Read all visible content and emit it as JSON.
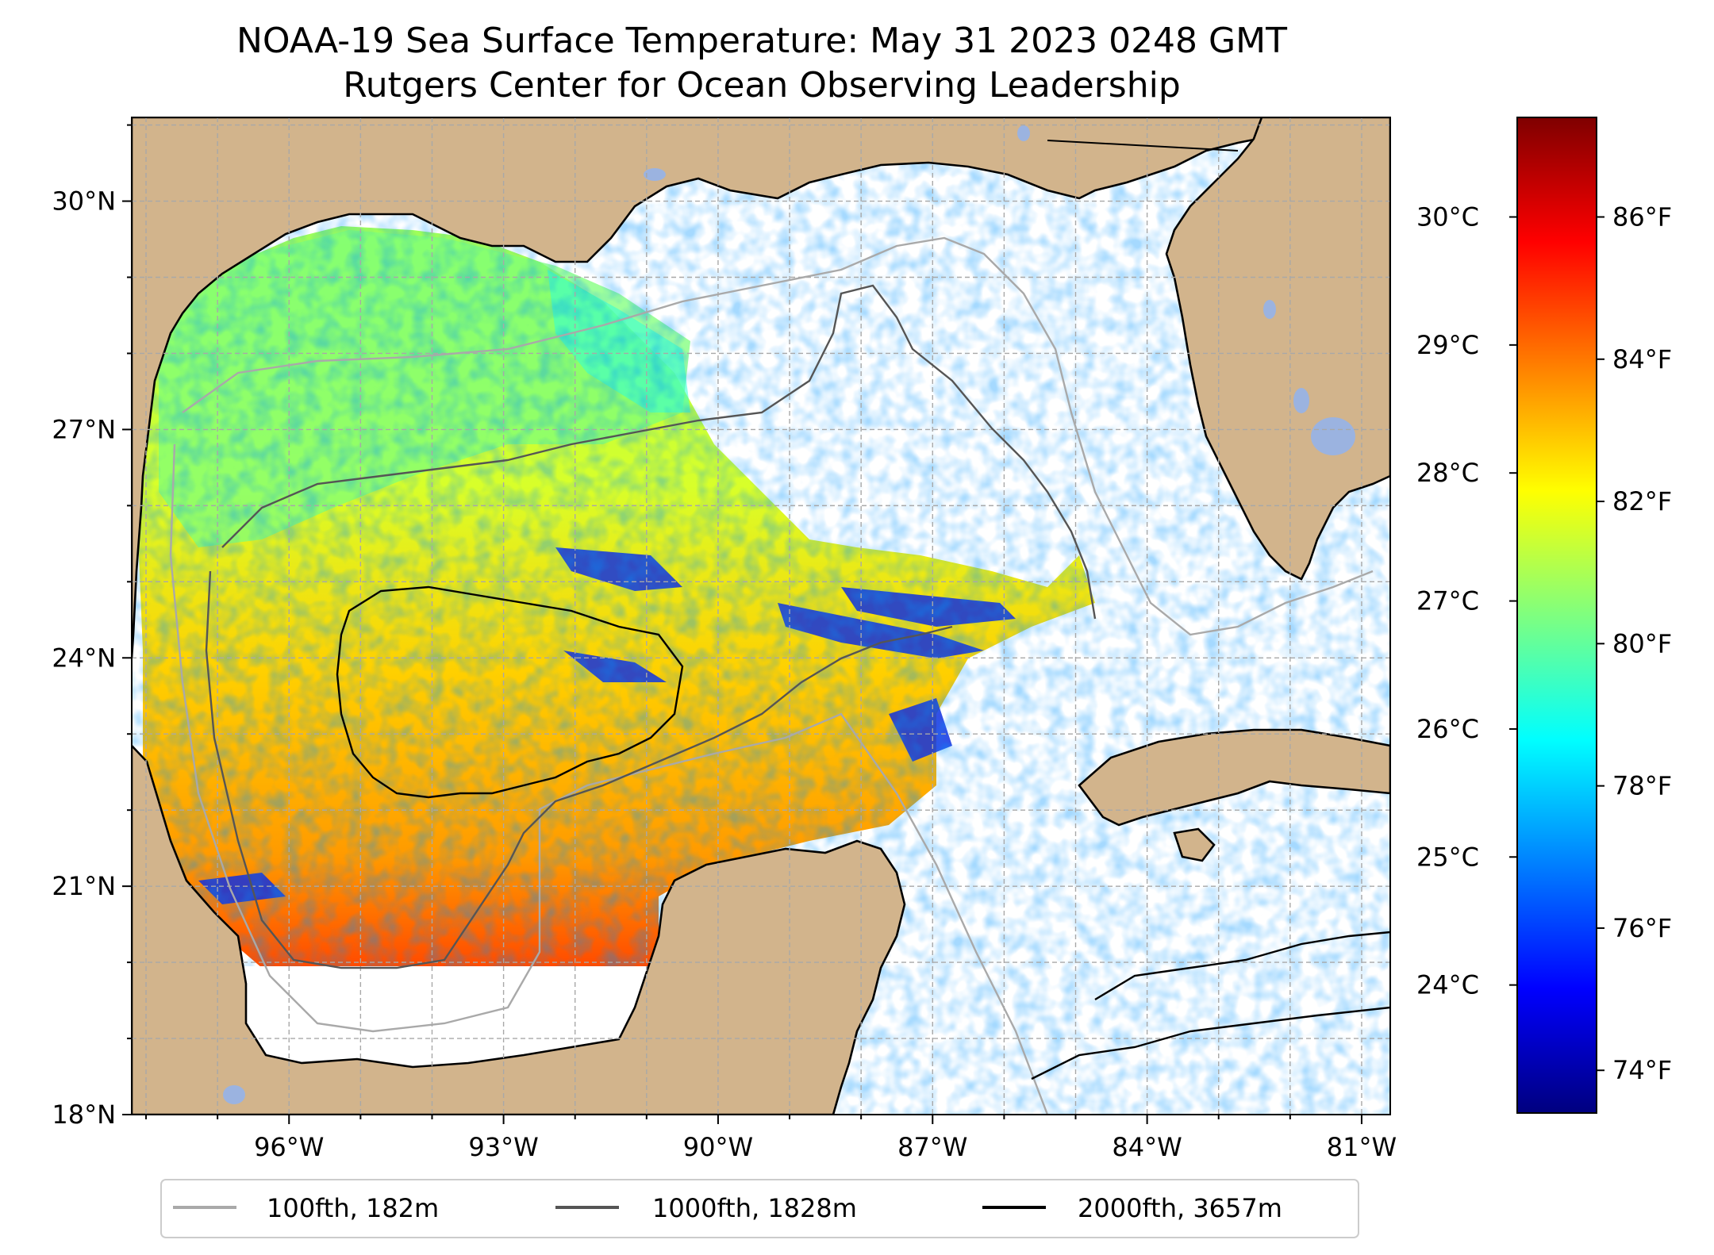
{
  "title": {
    "line1": "NOAA-19 Sea Surface Temperature: May 31 2023 0248 GMT",
    "line2": "Rutgers Center for Ocean Observing Leadership"
  },
  "map": {
    "lat_range": [
      18,
      31.1
    ],
    "lon_range": [
      -98.2,
      -80.6
    ],
    "lat_ticks": [
      {
        "value": 30,
        "label": "30°N"
      },
      {
        "value": 27,
        "label": "27°N"
      },
      {
        "value": 24,
        "label": "24°N"
      },
      {
        "value": 21,
        "label": "21°N"
      },
      {
        "value": 18,
        "label": "18°N"
      }
    ],
    "lon_ticks": [
      {
        "value": -96,
        "label": "96°W"
      },
      {
        "value": -93,
        "label": "93°W"
      },
      {
        "value": -90,
        "label": "90°W"
      },
      {
        "value": -87,
        "label": "87°W"
      },
      {
        "value": -84,
        "label": "84°W"
      },
      {
        "value": -81,
        "label": "81°W"
      }
    ],
    "gridlines": true,
    "land_color": "#d2b48c",
    "lake_color": "#9bb3e0",
    "ocean_no_data_color": "#ffffff"
  },
  "colorbar": {
    "colormap": "jet",
    "celsius_ticks": [
      {
        "value": 30,
        "label": "30°C"
      },
      {
        "value": 29,
        "label": "29°C"
      },
      {
        "value": 28,
        "label": "28°C"
      },
      {
        "value": 27,
        "label": "27°C"
      },
      {
        "value": 26,
        "label": "26°C"
      },
      {
        "value": 25,
        "label": "25°C"
      },
      {
        "value": 24,
        "label": "24°C"
      }
    ],
    "fahrenheit_ticks": [
      {
        "value": 86,
        "label": "86°F"
      },
      {
        "value": 84,
        "label": "84°F"
      },
      {
        "value": 82,
        "label": "82°F"
      },
      {
        "value": 80,
        "label": "80°F"
      },
      {
        "value": 78,
        "label": "78°F"
      },
      {
        "value": 76,
        "label": "76°F"
      },
      {
        "value": 74,
        "label": "74°F"
      }
    ],
    "range_f": [
      73.4,
      87.4
    ]
  },
  "legend": {
    "placement": "bottom-center",
    "items": [
      {
        "label": "100fth, 182m",
        "color": "#a9a9a9"
      },
      {
        "label": "1000fth, 1828m",
        "color": "#555555"
      },
      {
        "label": "2000fth, 3657m",
        "color": "#000000"
      }
    ]
  }
}
